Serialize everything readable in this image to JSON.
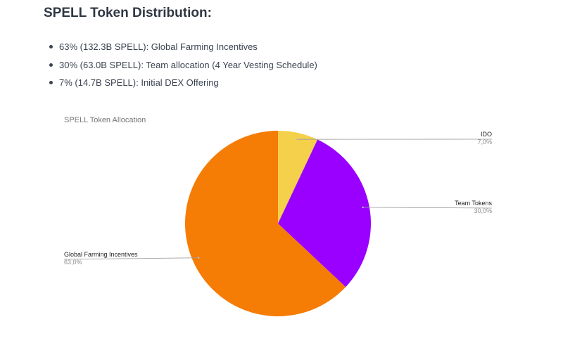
{
  "heading": "SPELL Token Distribution:",
  "bullets": [
    "63% (132.3B SPELL): Global Farming Incentives",
    "30% (63.0B SPELL): Team allocation (4 Year Vesting Schedule)",
    "7% (14.7B SPELL): Initial DEX Offering"
  ],
  "chart_data": {
    "type": "pie",
    "title": "SPELL Token Allocation",
    "slices": [
      {
        "label": "IDO",
        "value": 7.0,
        "value_label": "7,0%",
        "color": "#f4d04b"
      },
      {
        "label": "Team Tokens",
        "value": 30.0,
        "value_label": "30,0%",
        "color": "#9900ff"
      },
      {
        "label": "Global Farming Incentives",
        "value": 63.0,
        "value_label": "63,0%",
        "color": "#f57c05"
      }
    ],
    "start": "12 o'clock",
    "direction": "clockwise",
    "legend": "none",
    "labels": "leader lines with name and percentage"
  }
}
